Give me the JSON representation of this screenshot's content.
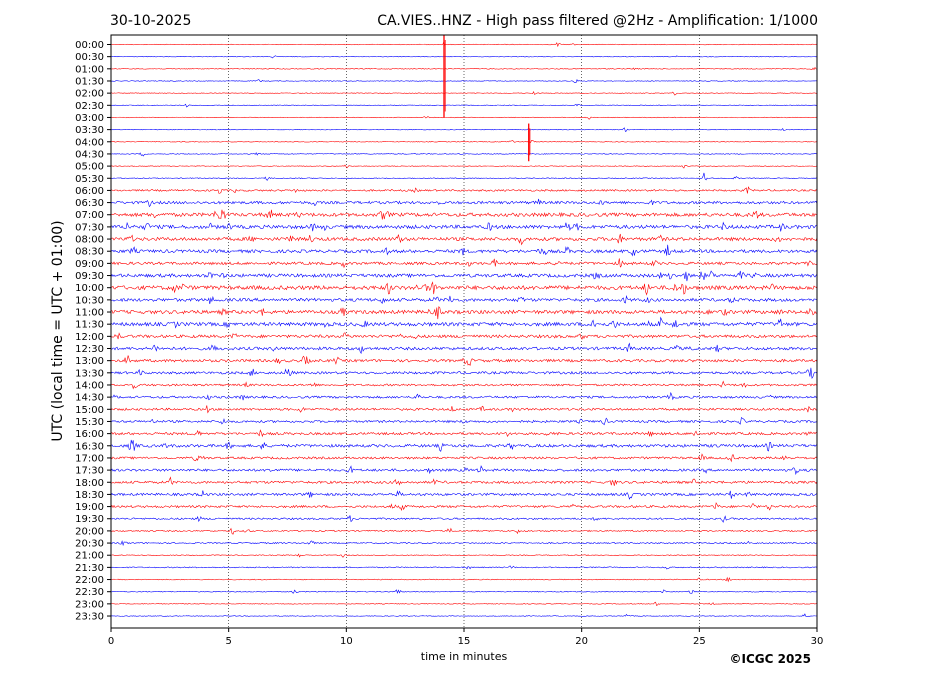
{
  "chart_data": {
    "type": "line",
    "date": "30-10-2025",
    "title": "CA.VIES..HNZ - High pass filtered @2Hz - Amplification: 1/1000",
    "xlabel": "time in minutes",
    "ylabel": "UTC (local time = UTC + 01:00)",
    "copyright": "©ICGC 2025",
    "xlim": [
      0,
      30
    ],
    "x_ticks": [
      0,
      5,
      10,
      15,
      20,
      25,
      30
    ],
    "x_tick_labels": [
      "0",
      "5",
      "10",
      "15",
      "20",
      "25",
      "30"
    ],
    "grid": "vertical dotted lines at 5, 10, 15, 20, 25 minutes",
    "trace_colors": [
      "#ff0000",
      "#0000ff"
    ],
    "row_labels": [
      "00:00",
      "00:30",
      "01:00",
      "01:30",
      "02:00",
      "02:30",
      "03:00",
      "03:30",
      "04:00",
      "04:30",
      "05:00",
      "05:30",
      "06:00",
      "06:30",
      "07:00",
      "07:30",
      "08:00",
      "08:30",
      "09:00",
      "09:30",
      "10:00",
      "10:30",
      "11:00",
      "11:30",
      "12:00",
      "12:30",
      "13:00",
      "13:30",
      "14:00",
      "14:30",
      "15:00",
      "15:30",
      "16:00",
      "16:30",
      "17:00",
      "17:30",
      "18:00",
      "18:30",
      "19:00",
      "19:30",
      "20:00",
      "20:30",
      "21:00",
      "21:30",
      "22:00",
      "22:30",
      "23:00",
      "23:30"
    ],
    "row_noise_level": [
      0.3,
      0.3,
      0.35,
      0.3,
      0.3,
      0.3,
      0.3,
      0.3,
      0.3,
      0.35,
      0.3,
      0.4,
      0.8,
      1.2,
      1.6,
      1.6,
      1.5,
      1.4,
      1.2,
      1.5,
      1.8,
      1.4,
      1.6,
      1.6,
      1.3,
      1.3,
      1.2,
      1.1,
      0.9,
      1.0,
      1.0,
      1.0,
      1.1,
      1.3,
      1.0,
      1.1,
      1.1,
      1.1,
      1.0,
      0.8,
      0.6,
      0.6,
      0.4,
      0.5,
      0.4,
      0.4,
      0.3,
      0.3
    ],
    "events": [
      {
        "row": "00:00",
        "minute": 14.15,
        "size": "large",
        "note": "spike spanning rows 00:00 to 03:00"
      },
      {
        "row": "03:30",
        "minute": 17.75,
        "size": "medium",
        "note": "spike spanning rows 03:30 to 05:30"
      },
      {
        "row": "05:30",
        "minute": 25.2,
        "size": "small"
      },
      {
        "row": "07:30",
        "minute": 28.5,
        "size": "small"
      },
      {
        "row": "08:00",
        "minute": 23.3,
        "size": "small"
      },
      {
        "row": "09:30",
        "minute": 25.5,
        "size": "small"
      },
      {
        "row": "10:30",
        "minute": 13.8,
        "size": "small"
      },
      {
        "row": "11:30",
        "minute": 20.5,
        "size": "small"
      },
      {
        "row": "16:30",
        "minute": 14.0,
        "size": "small"
      },
      {
        "row": "22:30",
        "minute": 12.2,
        "size": "small"
      },
      {
        "row": "22:30",
        "minute": 23.5,
        "size": "small"
      }
    ]
  }
}
